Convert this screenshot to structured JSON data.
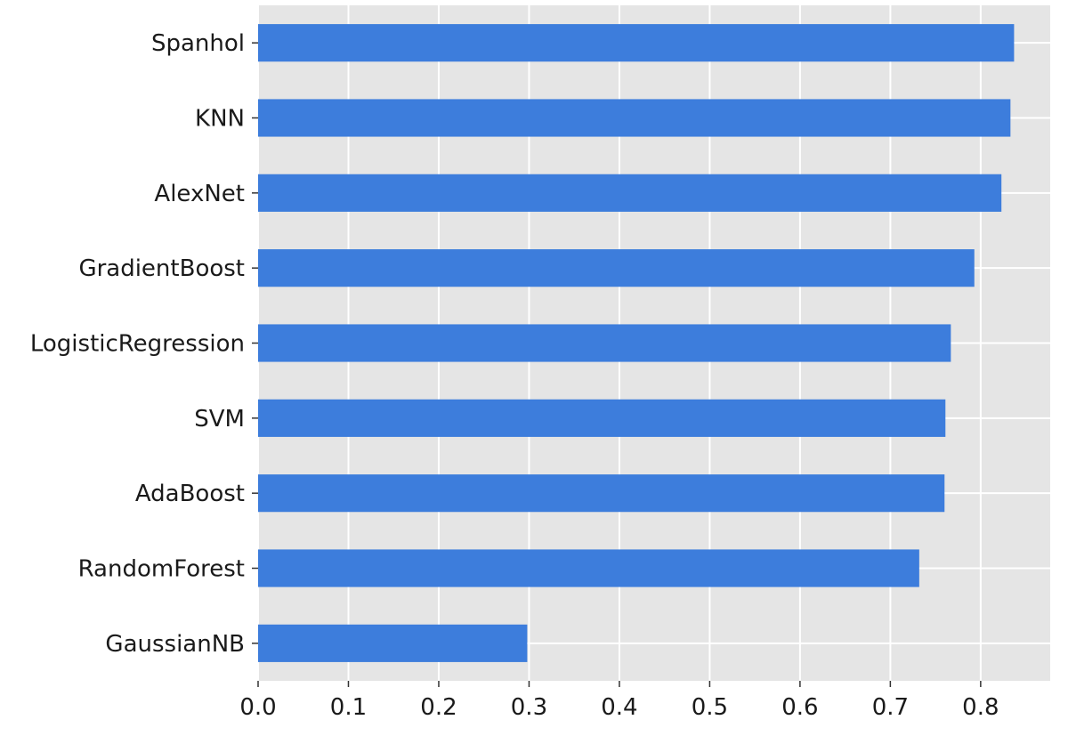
{
  "chart_data": {
    "type": "bar",
    "orientation": "horizontal",
    "categories": [
      "Spanhol",
      "KNN",
      "AlexNet",
      "GradientBoost",
      "LogisticRegression",
      "SVM",
      "AdaBoost",
      "RandomForest",
      "GaussianNB"
    ],
    "values": [
      0.837,
      0.833,
      0.823,
      0.793,
      0.767,
      0.761,
      0.76,
      0.732,
      0.298
    ],
    "xlim": [
      0.0,
      0.877
    ],
    "xticks": [
      "0.0",
      "0.1",
      "0.2",
      "0.3",
      "0.4",
      "0.5",
      "0.6",
      "0.7",
      "0.8"
    ],
    "title": "",
    "xlabel": "",
    "ylabel": "",
    "grid": true,
    "legend": false
  },
  "colors": {
    "bar": "#3d7ddc",
    "plot_background": "#e5e5e5",
    "grid": "#ffffff",
    "text": "#1a1a1a"
  }
}
